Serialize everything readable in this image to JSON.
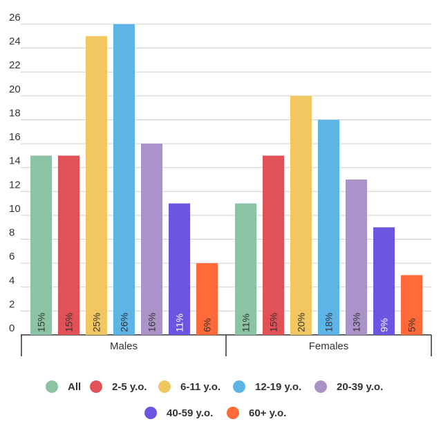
{
  "chart_data": {
    "type": "bar",
    "categories": [
      "Males",
      "Females"
    ],
    "ylim": [
      0,
      26
    ],
    "y_ticks": [
      0,
      2,
      4,
      6,
      8,
      10,
      12,
      14,
      16,
      18,
      20,
      22,
      24,
      26
    ],
    "grid": true,
    "legend_position": "bottom",
    "series": [
      {
        "name": "All",
        "color": "#8cc3a4",
        "values": [
          15,
          11
        ],
        "labels": [
          "15%",
          "11%"
        ]
      },
      {
        "name": "2-5 y.o.",
        "color": "#e05256",
        "values": [
          15,
          15
        ],
        "labels": [
          "15%",
          "15%"
        ]
      },
      {
        "name": "6-11 y.o.",
        "color": "#f2c661",
        "values": [
          25,
          20
        ],
        "labels": [
          "25%",
          "20%"
        ]
      },
      {
        "name": "12-19 y.o.",
        "color": "#5db4e6",
        "values": [
          26,
          18
        ],
        "labels": [
          "26%",
          "18%"
        ]
      },
      {
        "name": "20-39 y.o.",
        "color": "#ab93c9",
        "values": [
          16,
          13
        ],
        "labels": [
          "16%",
          "13%"
        ]
      },
      {
        "name": "40-59 y.o.",
        "color": "#6c56e1",
        "values": [
          11,
          9
        ],
        "labels": [
          "11%",
          "9%"
        ]
      },
      {
        "name": "60+ y.o.",
        "color": "#ff6a38",
        "values": [
          6,
          5
        ],
        "labels": [
          "6%",
          "5%"
        ]
      }
    ]
  }
}
